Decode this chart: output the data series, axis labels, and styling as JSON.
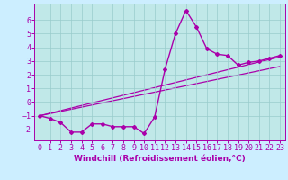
{
  "x": [
    0,
    1,
    2,
    3,
    4,
    5,
    6,
    7,
    8,
    9,
    10,
    11,
    12,
    13,
    14,
    15,
    16,
    17,
    18,
    19,
    20,
    21,
    22,
    23
  ],
  "y_main": [
    -1.0,
    -1.2,
    -1.5,
    -2.2,
    -2.2,
    -1.6,
    -1.6,
    -1.8,
    -1.8,
    -1.8,
    -2.3,
    -1.1,
    2.4,
    5.0,
    6.7,
    5.5,
    3.9,
    3.5,
    3.4,
    2.7,
    2.9,
    3.0,
    3.2,
    3.4
  ],
  "line1_x": [
    0,
    23
  ],
  "line1_y": [
    -1.0,
    3.3
  ],
  "line2_x": [
    0,
    23
  ],
  "line2_y": [
    -1.0,
    2.6
  ],
  "line_color": "#aa00aa",
  "bg_color": "#cceeff",
  "plot_bg": "#c0e8e8",
  "grid_color": "#99cccc",
  "xlabel": "Windchill (Refroidissement éolien,°C)",
  "xlabel_fontsize": 6.5,
  "tick_fontsize": 6.0,
  "xlim": [
    -0.5,
    23.5
  ],
  "ylim": [
    -2.8,
    7.2
  ],
  "yticks": [
    -2,
    -1,
    0,
    1,
    2,
    3,
    4,
    5,
    6
  ],
  "xticks": [
    0,
    1,
    2,
    3,
    4,
    5,
    6,
    7,
    8,
    9,
    10,
    11,
    12,
    13,
    14,
    15,
    16,
    17,
    18,
    19,
    20,
    21,
    22,
    23
  ]
}
